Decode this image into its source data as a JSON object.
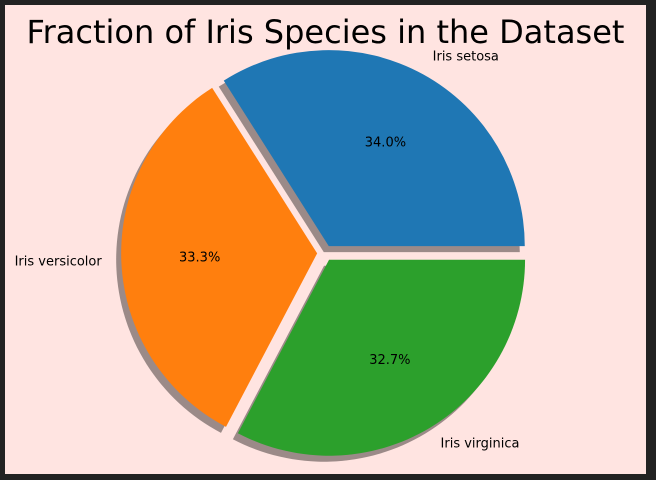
{
  "chart_data": {
    "type": "pie",
    "title": "Fraction of Iris Species in the Dataset",
    "slices": [
      {
        "label": "Iris setosa",
        "value": 34.0,
        "pct_label": "34.0%",
        "color": "#1f77b4"
      },
      {
        "label": "Iris versicolor",
        "value": 33.3,
        "pct_label": "33.3%",
        "color": "#ff7f0e"
      },
      {
        "label": "Iris virginica",
        "value": 32.7,
        "pct_label": "32.7%",
        "color": "#2ca02c"
      }
    ],
    "start_angle_deg": 0,
    "direction": "counterclockwise",
    "exploded": true,
    "shadow": true,
    "legend": "none"
  },
  "colors": {
    "outer_border": "#222222",
    "background": "#ffe4e1",
    "shadow": "#8a7a78"
  }
}
